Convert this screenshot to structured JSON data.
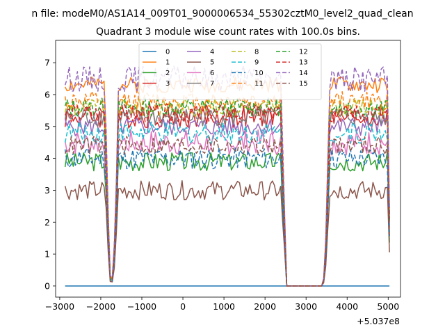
{
  "chart_data": {
    "type": "line",
    "suptitle": "n file: modeM0/AS1A14_009T01_9000006534_55302cztM0_level2_quad_clean",
    "title": "Quadrant 3 module wise count rates with 100.0s bins.",
    "xlabel": "",
    "ylabel": "",
    "x_offset_text": "+5.037e8",
    "xlim": [
      -3100,
      5300
    ],
    "ylim": [
      -0.35,
      7.7
    ],
    "xticks": [
      -3000,
      -2000,
      -1000,
      0,
      1000,
      2000,
      3000,
      4000,
      5000
    ],
    "xtick_labels": [
      "−3000",
      "−2000",
      "−1000",
      "0",
      "1000",
      "2000",
      "3000",
      "4000",
      "5000"
    ],
    "yticks": [
      0,
      1,
      2,
      3,
      4,
      5,
      6,
      7
    ],
    "ytick_labels": [
      "0",
      "1",
      "2",
      "3",
      "4",
      "5",
      "6",
      "7"
    ],
    "grid": false,
    "legend_position": "upper center, 4 columns",
    "x_profile": [
      [
        -2870,
        1
      ],
      [
        -1900,
        1
      ],
      [
        -1780,
        0.05
      ],
      [
        -1720,
        0.04
      ],
      [
        -1640,
        0.3
      ],
      [
        -1580,
        1
      ],
      [
        2380,
        1
      ],
      [
        2470,
        0.4
      ],
      [
        2530,
        0
      ],
      [
        3420,
        0
      ],
      [
        3500,
        0.3
      ],
      [
        3560,
        1
      ],
      [
        4980,
        1
      ],
      [
        5040,
        0.25
      ]
    ],
    "series": [
      {
        "name": "0",
        "color": "#1f77b4",
        "style": "solid",
        "level": 0.0,
        "amp": 0.0,
        "seed": 1
      },
      {
        "name": "1",
        "color": "#ff7f0e",
        "style": "solid",
        "level": 6.3,
        "amp": 0.25,
        "seed": 2
      },
      {
        "name": "2",
        "color": "#2ca02c",
        "style": "solid",
        "level": 3.9,
        "amp": 0.3,
        "seed": 3
      },
      {
        "name": "3",
        "color": "#d62728",
        "style": "solid",
        "level": 5.3,
        "amp": 0.35,
        "seed": 4
      },
      {
        "name": "4",
        "color": "#9467bd",
        "style": "solid",
        "level": 5.0,
        "amp": 0.3,
        "seed": 5
      },
      {
        "name": "5",
        "color": "#8c564b",
        "style": "solid",
        "level": 3.0,
        "amp": 0.3,
        "seed": 6
      },
      {
        "name": "6",
        "color": "#e377c2",
        "style": "solid",
        "level": 4.5,
        "amp": 0.4,
        "seed": 7
      },
      {
        "name": "7",
        "color": "#7f7f7f",
        "style": "solid",
        "level": 5.3,
        "amp": 0.3,
        "seed": 8
      },
      {
        "name": "8",
        "color": "#bcbd22",
        "style": "dashed",
        "level": 5.6,
        "amp": 0.3,
        "seed": 9
      },
      {
        "name": "9",
        "color": "#17becf",
        "style": "dashed",
        "level": 4.8,
        "amp": 0.35,
        "seed": 10
      },
      {
        "name": "10",
        "color": "#1f77b4",
        "style": "dashed",
        "level": 4.0,
        "amp": 0.35,
        "seed": 11
      },
      {
        "name": "11",
        "color": "#ff7f0e",
        "style": "dashed",
        "level": 5.8,
        "amp": 0.3,
        "seed": 12
      },
      {
        "name": "12",
        "color": "#2ca02c",
        "style": "dashed",
        "level": 5.6,
        "amp": 0.3,
        "seed": 13
      },
      {
        "name": "13",
        "color": "#d62728",
        "style": "dashed",
        "level": 5.4,
        "amp": 0.3,
        "seed": 14
      },
      {
        "name": "14",
        "color": "#9467bd",
        "style": "dashed",
        "level": 6.5,
        "amp": 0.4,
        "seed": 15
      },
      {
        "name": "15",
        "color": "#8c564b",
        "style": "dashed",
        "level": 4.4,
        "amp": 0.3,
        "seed": 16
      }
    ]
  }
}
